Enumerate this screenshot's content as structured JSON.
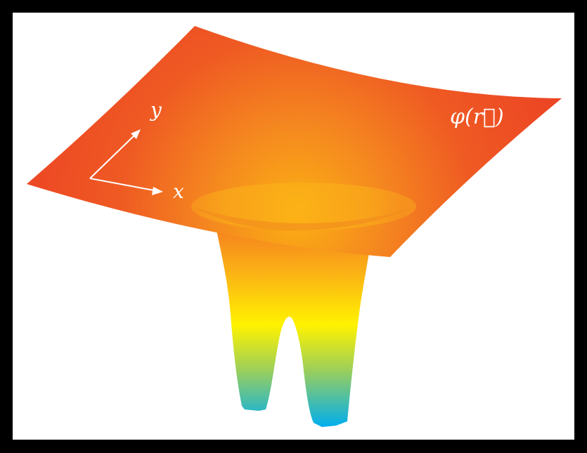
{
  "figure": {
    "description_free": true,
    "potential_label": "φ(r⃗)",
    "axis_labels": {
      "x": "x",
      "y": "y"
    },
    "colors": {
      "frame": "#000000",
      "background": "#ffffff",
      "surface_edge": "#ee4423",
      "surface_mid": "#f7941d",
      "well_yellow": "#fff200",
      "well_green": "#8dc63f",
      "well_cyan": "#00aeef",
      "arrow": "#ffffff"
    }
  }
}
